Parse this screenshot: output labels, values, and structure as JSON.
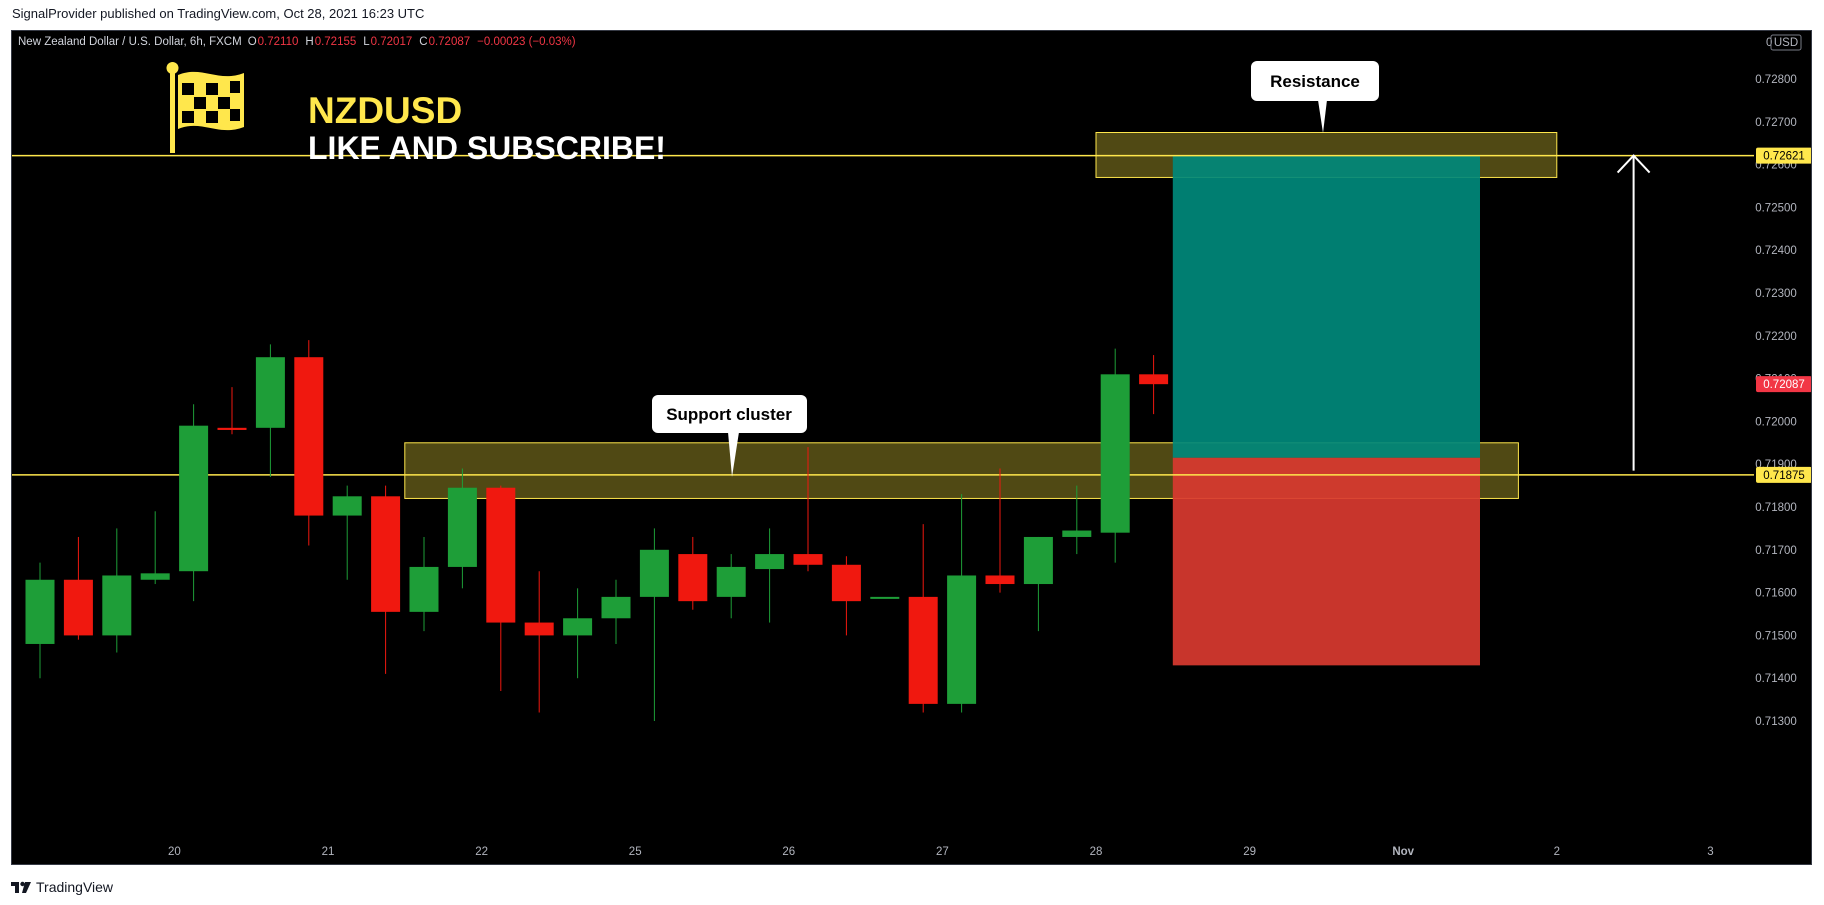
{
  "header": {
    "published": "SignalProvider published on TradingView.com, Oct 28, 2021 16:23 UTC"
  },
  "footer": {
    "brand": "TradingView"
  },
  "legend": {
    "symbol": "New Zealand Dollar / U.S. Dollar, 6h, FXCM",
    "o_label": "O",
    "o_value": "0.72110",
    "h_label": "H",
    "h_value": "0.72155",
    "l_label": "L",
    "l_value": "0.72017",
    "c_label": "C",
    "c_value": "0.72087",
    "change": "−0.00023 (−0.03%)"
  },
  "overlay": {
    "title": "NZDUSD",
    "subtitle": "LIKE AND SUBSCRIBE!"
  },
  "annotations": {
    "resistance": "Resistance",
    "support": "Support cluster"
  },
  "colors": {
    "background": "#000000",
    "up": "#1e9e38",
    "down": "#f0180f",
    "line": "#ffe74c",
    "zone": "#5e5618",
    "target": "#00897b",
    "stop": "#d93a30",
    "brand": "#ffe74c"
  },
  "chart_data": {
    "type": "candlestick",
    "currency": "USD",
    "axis_top_label": "0",
    "ylim": [
      0.7125,
      0.7285
    ],
    "y_ticks": [
      "0.72800",
      "0.72700",
      "0.72600",
      "0.72500",
      "0.72400",
      "0.72300",
      "0.72200",
      "0.72100",
      "0.72000",
      "0.71900",
      "0.71800",
      "0.71700",
      "0.71600",
      "0.71500",
      "0.71400",
      "0.71300"
    ],
    "x_ticks": [
      {
        "label": "20",
        "i": 3.5
      },
      {
        "label": "21",
        "i": 7.5
      },
      {
        "label": "22",
        "i": 11.5
      },
      {
        "label": "25",
        "i": 15.5
      },
      {
        "label": "26",
        "i": 19.5
      },
      {
        "label": "27",
        "i": 23.5
      },
      {
        "label": "28",
        "i": 27.5
      },
      {
        "label": "29",
        "i": 31.5
      },
      {
        "label": "Nov",
        "i": 35.5,
        "bold": true
      },
      {
        "label": "2",
        "i": 39.5
      },
      {
        "label": "3",
        "i": 43.5
      }
    ],
    "candles": [
      {
        "o": 0.7148,
        "h": 0.7167,
        "l": 0.714,
        "c": 0.7163
      },
      {
        "o": 0.7163,
        "h": 0.7173,
        "l": 0.7149,
        "c": 0.715
      },
      {
        "o": 0.715,
        "h": 0.7175,
        "l": 0.7146,
        "c": 0.7164
      },
      {
        "o": 0.7163,
        "h": 0.7179,
        "l": 0.7162,
        "c": 0.71645
      },
      {
        "o": 0.7165,
        "h": 0.7204,
        "l": 0.7158,
        "c": 0.7199
      },
      {
        "o": 0.71985,
        "h": 0.7208,
        "l": 0.7197,
        "c": 0.7198
      },
      {
        "o": 0.71985,
        "h": 0.7218,
        "l": 0.7187,
        "c": 0.7215
      },
      {
        "o": 0.7215,
        "h": 0.7219,
        "l": 0.7171,
        "c": 0.7178
      },
      {
        "o": 0.7178,
        "h": 0.7185,
        "l": 0.7163,
        "c": 0.71825
      },
      {
        "o": 0.71825,
        "h": 0.7185,
        "l": 0.7141,
        "c": 0.71555
      },
      {
        "o": 0.71555,
        "h": 0.7173,
        "l": 0.7151,
        "c": 0.7166
      },
      {
        "o": 0.7166,
        "h": 0.7189,
        "l": 0.7161,
        "c": 0.71845
      },
      {
        "o": 0.71845,
        "h": 0.7185,
        "l": 0.7137,
        "c": 0.7153
      },
      {
        "o": 0.7153,
        "h": 0.7165,
        "l": 0.7132,
        "c": 0.715
      },
      {
        "o": 0.715,
        "h": 0.7161,
        "l": 0.714,
        "c": 0.7154
      },
      {
        "o": 0.7154,
        "h": 0.7163,
        "l": 0.7148,
        "c": 0.7159
      },
      {
        "o": 0.7159,
        "h": 0.7175,
        "l": 0.713,
        "c": 0.717
      },
      {
        "o": 0.7169,
        "h": 0.7173,
        "l": 0.7156,
        "c": 0.7158
      },
      {
        "o": 0.7159,
        "h": 0.7169,
        "l": 0.7154,
        "c": 0.7166
      },
      {
        "o": 0.71655,
        "h": 0.7175,
        "l": 0.7153,
        "c": 0.7169
      },
      {
        "o": 0.7169,
        "h": 0.7194,
        "l": 0.7165,
        "c": 0.71665
      },
      {
        "o": 0.71665,
        "h": 0.71685,
        "l": 0.715,
        "c": 0.7158
      },
      {
        "o": 0.7159,
        "h": 0.7159,
        "l": 0.7159,
        "c": 0.7159
      },
      {
        "o": 0.7159,
        "h": 0.7176,
        "l": 0.7132,
        "c": 0.7134
      },
      {
        "o": 0.7134,
        "h": 0.7183,
        "l": 0.7132,
        "c": 0.7164
      },
      {
        "o": 0.7164,
        "h": 0.7189,
        "l": 0.716,
        "c": 0.7162
      },
      {
        "o": 0.7162,
        "h": 0.7173,
        "l": 0.7151,
        "c": 0.7173
      },
      {
        "o": 0.7173,
        "h": 0.7185,
        "l": 0.7169,
        "c": 0.71745
      },
      {
        "o": 0.7174,
        "h": 0.7217,
        "l": 0.7167,
        "c": 0.7211
      },
      {
        "o": 0.7211,
        "h": 0.72155,
        "l": 0.72017,
        "c": 0.72087
      }
    ],
    "resistance_level": {
      "price": 0.72621,
      "label": "0.72621"
    },
    "support_level": {
      "price": 0.71875,
      "label": "0.71875"
    },
    "last_price": {
      "price": 0.72087,
      "label": "0.72087"
    },
    "resistance_zone": {
      "from_i": 27.5,
      "to_i": 39.5,
      "low": 0.7257,
      "high": 0.72675
    },
    "support_zone": {
      "from_i": 9.5,
      "to_i": 38.5,
      "low": 0.7182,
      "high": 0.7195
    },
    "position": {
      "from_i": 29.5,
      "to_i": 37.5,
      "entry": 0.71915,
      "target": 0.72621,
      "stop": 0.7143
    },
    "arrow": {
      "i": 41.5,
      "from": 0.71885,
      "to": 0.72621
    }
  }
}
